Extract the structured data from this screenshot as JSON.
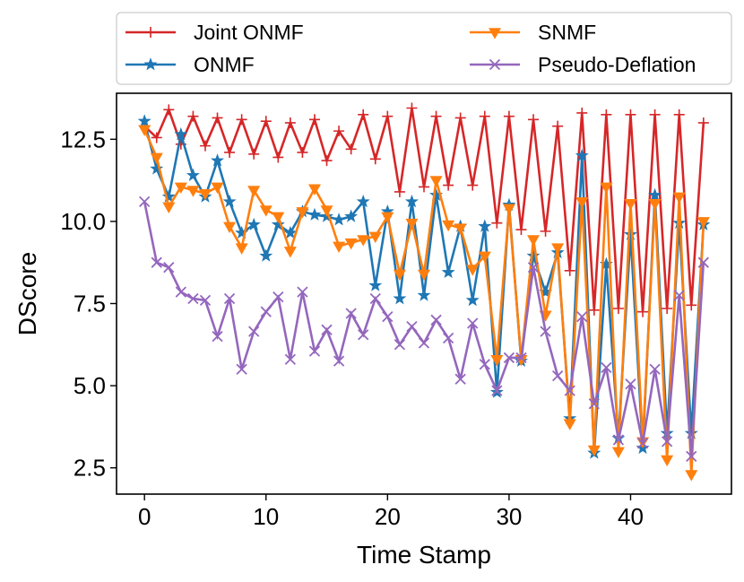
{
  "chart_data": {
    "type": "line",
    "title": "",
    "xlabel": "Time Stamp",
    "ylabel": "DScore",
    "xlim": [
      -2.3,
      48.3
    ],
    "ylim": [
      1.7,
      13.9
    ],
    "xticks": [
      0,
      10,
      20,
      30,
      40
    ],
    "yticks": [
      2.5,
      5.0,
      7.5,
      10.0,
      12.5
    ],
    "xtick_labels": [
      "0",
      "10",
      "20",
      "30",
      "40"
    ],
    "ytick_labels": [
      "2.5",
      "5.0",
      "7.5",
      "10.0",
      "12.5"
    ],
    "grid": false,
    "legend_position": "top, outside plot, two columns",
    "x": [
      0,
      1,
      2,
      3,
      4,
      5,
      6,
      7,
      8,
      9,
      10,
      11,
      12,
      13,
      14,
      15,
      16,
      17,
      18,
      19,
      20,
      21,
      22,
      23,
      24,
      25,
      26,
      27,
      28,
      29,
      30,
      31,
      32,
      33,
      34,
      35,
      36,
      37,
      38,
      39,
      40,
      41,
      42,
      43,
      44,
      45,
      46
    ],
    "series": [
      {
        "name": "Joint ONMF",
        "color": "#d62728",
        "marker": "plus",
        "values": [
          12.9,
          12.55,
          13.4,
          12.35,
          13.2,
          12.3,
          13.15,
          12.1,
          13.1,
          12.05,
          13.05,
          11.95,
          13.0,
          12.1,
          13.1,
          11.85,
          12.75,
          12.2,
          13.25,
          11.9,
          13.2,
          10.9,
          13.45,
          11.05,
          13.2,
          11.1,
          13.15,
          11.1,
          13.2,
          9.95,
          13.2,
          9.75,
          13.1,
          9.7,
          12.9,
          8.5,
          13.3,
          7.3,
          13.25,
          7.35,
          13.25,
          7.25,
          13.25,
          7.35,
          13.25,
          7.45,
          13.0
        ]
      },
      {
        "name": "ONMF",
        "color": "#1f77b4",
        "marker": "star",
        "values": [
          13.05,
          11.6,
          10.75,
          12.65,
          11.4,
          10.75,
          11.85,
          10.6,
          9.65,
          9.9,
          8.95,
          9.9,
          9.65,
          10.3,
          10.2,
          10.15,
          10.05,
          10.15,
          10.6,
          8.05,
          10.3,
          7.65,
          10.6,
          7.75,
          10.8,
          8.45,
          9.85,
          7.6,
          9.85,
          4.8,
          10.5,
          5.75,
          8.95,
          7.85,
          9.05,
          4.0,
          12.0,
          2.95,
          8.7,
          3.4,
          9.6,
          3.1,
          10.8,
          3.55,
          9.95,
          3.55,
          9.9
        ]
      },
      {
        "name": "SNMF",
        "color": "#ff7f0e",
        "marker": "triangle-down",
        "values": [
          12.8,
          11.95,
          10.45,
          11.05,
          10.95,
          10.85,
          11.05,
          9.85,
          9.2,
          10.95,
          10.35,
          10.15,
          9.1,
          10.3,
          11.0,
          10.35,
          9.25,
          9.35,
          9.45,
          9.55,
          10.15,
          8.4,
          9.95,
          8.4,
          11.25,
          9.9,
          9.8,
          8.55,
          8.95,
          5.8,
          10.4,
          5.8,
          9.45,
          7.15,
          9.2,
          3.85,
          10.6,
          3.05,
          11.05,
          3.0,
          10.55,
          3.3,
          10.55,
          2.75,
          10.75,
          2.3,
          10.0
        ]
      },
      {
        "name": "Pseudo-Deflation",
        "color": "#9467bd",
        "marker": "x",
        "values": [
          10.6,
          8.75,
          8.6,
          7.85,
          7.65,
          7.6,
          6.5,
          7.65,
          5.5,
          6.65,
          7.25,
          7.7,
          5.8,
          7.85,
          6.05,
          6.7,
          5.75,
          7.2,
          6.55,
          7.65,
          7.1,
          6.25,
          6.8,
          6.3,
          7.0,
          6.45,
          5.2,
          6.9,
          5.65,
          4.85,
          5.85,
          5.85,
          8.6,
          6.65,
          5.3,
          4.85,
          7.1,
          4.45,
          5.55,
          3.35,
          5.05,
          3.25,
          5.5,
          3.3,
          7.75,
          2.85,
          8.75
        ]
      }
    ]
  }
}
